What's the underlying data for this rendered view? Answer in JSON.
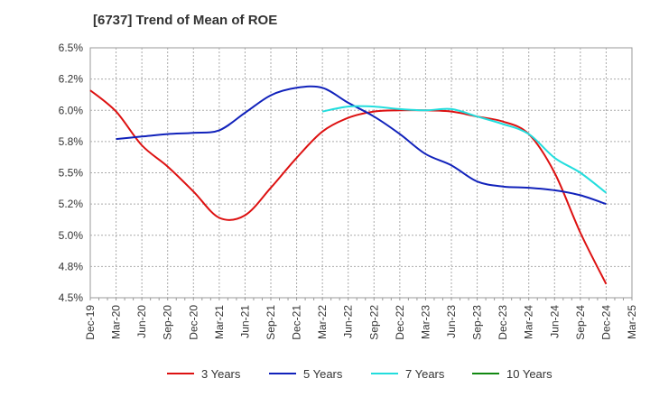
{
  "chart_data": {
    "type": "line",
    "title": "[6737]  Trend of Mean of ROE",
    "xlabel": "",
    "ylabel": "",
    "ylim": [
      4.5,
      6.5
    ],
    "grid": true,
    "legend_position": "bottom",
    "y_ticks": [
      "4.5%",
      "4.8%",
      "5.0%",
      "5.2%",
      "5.5%",
      "5.8%",
      "6.0%",
      "6.2%",
      "6.5%"
    ],
    "y_tick_values": [
      4.5,
      4.75,
      5.0,
      5.25,
      5.5,
      5.75,
      6.0,
      6.25,
      6.5
    ],
    "x_ticks": [
      "Dec-19",
      "Mar-20",
      "Jun-20",
      "Sep-20",
      "Dec-20",
      "Mar-21",
      "Jun-21",
      "Sep-21",
      "Dec-21",
      "Mar-22",
      "Jun-22",
      "Sep-22",
      "Dec-22",
      "Mar-23",
      "Jun-23",
      "Sep-23",
      "Dec-23",
      "Mar-24",
      "Jun-24",
      "Sep-24",
      "Dec-24",
      "Mar-25"
    ],
    "x": [
      "Dec-19",
      "Mar-20",
      "Jun-20",
      "Sep-20",
      "Dec-20",
      "Mar-21",
      "Jun-21",
      "Sep-21",
      "Dec-21",
      "Mar-22",
      "Jun-22",
      "Sep-22",
      "Dec-22",
      "Mar-23",
      "Jun-23",
      "Sep-23",
      "Dec-23",
      "Mar-24",
      "Jun-24",
      "Sep-24",
      "Dec-24"
    ],
    "series": [
      {
        "name": "3 Years",
        "color": "#dd1111",
        "values": [
          6.16,
          5.99,
          5.72,
          5.55,
          5.35,
          5.14,
          5.16,
          5.38,
          5.62,
          5.83,
          5.94,
          5.99,
          6.0,
          6.0,
          5.99,
          5.95,
          5.91,
          5.81,
          5.5,
          5.02,
          4.61
        ]
      },
      {
        "name": "5 Years",
        "color": "#1122bb",
        "values": [
          null,
          5.77,
          5.79,
          5.81,
          5.82,
          5.84,
          5.98,
          6.12,
          6.18,
          6.18,
          6.06,
          5.95,
          5.81,
          5.65,
          5.56,
          5.43,
          5.39,
          5.38,
          5.36,
          5.32,
          5.25
        ]
      },
      {
        "name": "7 Years",
        "color": "#22dddd",
        "values": [
          null,
          null,
          null,
          null,
          null,
          null,
          null,
          null,
          null,
          5.99,
          6.03,
          6.03,
          6.01,
          6.0,
          6.01,
          5.95,
          5.89,
          5.81,
          5.62,
          5.5,
          5.34
        ]
      },
      {
        "name": "10 Years",
        "color": "#118811",
        "values": [
          null,
          null,
          null,
          null,
          null,
          null,
          null,
          null,
          null,
          null,
          null,
          null,
          null,
          null,
          null,
          null,
          null,
          null,
          null,
          null,
          null
        ]
      }
    ]
  }
}
